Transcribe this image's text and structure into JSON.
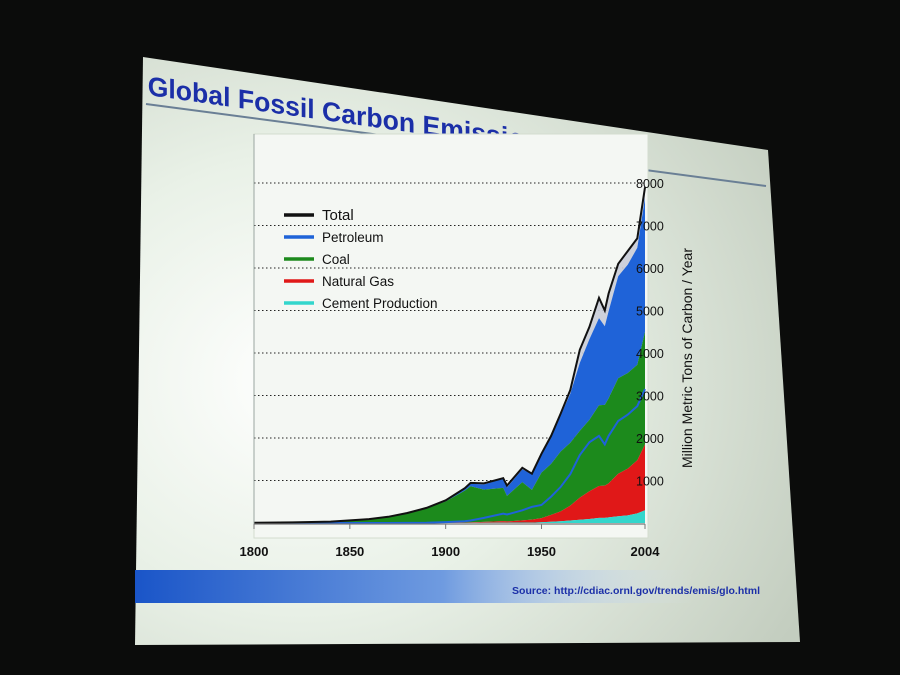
{
  "slide": {
    "title": "Global Fossil Carbon Emissions",
    "source": "Source: http://cdiac.ornl.gov/trends/emis/glo.html"
  },
  "chart_data": {
    "type": "area",
    "ylabel": "Million Metric Tons of Carbon / Year",
    "ylim": [
      0,
      8000
    ],
    "xlim": [
      1800,
      2004
    ],
    "x_ticks": [
      "1800",
      "1850",
      "1900",
      "1950",
      "2004"
    ],
    "y_ticks": [
      "1000",
      "2000",
      "3000",
      "4000",
      "5000",
      "6000",
      "7000",
      "8000"
    ],
    "grid": true,
    "legend_position": "top-left",
    "colors": {
      "total": "#111111",
      "total_fill": "#c9ccd8",
      "petroleum": "#1f63d8",
      "coal": "#1c8a1c",
      "natural_gas": "#e01818",
      "cement": "#33d6cc"
    },
    "x": [
      1800,
      1820,
      1840,
      1860,
      1870,
      1880,
      1890,
      1900,
      1910,
      1913,
      1920,
      1930,
      1932,
      1940,
      1945,
      1950,
      1955,
      1960,
      1965,
      1970,
      1975,
      1980,
      1983,
      1985,
      1990,
      1995,
      2000,
      2004
    ],
    "series": [
      {
        "name": "Total",
        "key": "total",
        "values": [
          8,
          14,
          33,
          91,
          147,
          236,
          356,
          534,
          819,
          943,
          932,
          1053,
          881,
          1299,
          1160,
          1630,
          2050,
          2577,
          3130,
          4076,
          4615,
          5300,
          5000,
          5400,
          6100,
          6400,
          6700,
          7900
        ]
      },
      {
        "name": "Petroleum",
        "key": "petroleum",
        "values": [
          0,
          0,
          0,
          0,
          1,
          2,
          5,
          20,
          40,
          60,
          120,
          220,
          200,
          300,
          380,
          423,
          620,
          850,
          1150,
          1600,
          1900,
          2050,
          1850,
          2050,
          2400,
          2550,
          2750,
          3150
        ]
      },
      {
        "name": "Coal",
        "key": "coal",
        "values": [
          8,
          14,
          33,
          91,
          146,
          232,
          345,
          500,
          750,
          850,
          760,
          780,
          600,
          900,
          700,
          1070,
          1200,
          1410,
          1480,
          1570,
          1680,
          1900,
          1900,
          2000,
          2250,
          2250,
          2250,
          2650
        ]
      },
      {
        "name": "Natural Gas",
        "key": "natural_gas",
        "values": [
          0,
          0,
          0,
          0,
          0,
          1,
          3,
          5,
          10,
          12,
          20,
          35,
          30,
          50,
          70,
          97,
          160,
          230,
          350,
          520,
          650,
          750,
          760,
          800,
          1000,
          1100,
          1250,
          1550
        ]
      },
      {
        "name": "Cement Production",
        "key": "cement",
        "values": [
          0,
          0,
          0,
          0,
          0,
          0,
          0,
          1,
          2,
          3,
          5,
          10,
          8,
          12,
          10,
          18,
          30,
          43,
          60,
          78,
          95,
          120,
          120,
          131,
          157,
          180,
          225,
          300
        ]
      }
    ]
  }
}
